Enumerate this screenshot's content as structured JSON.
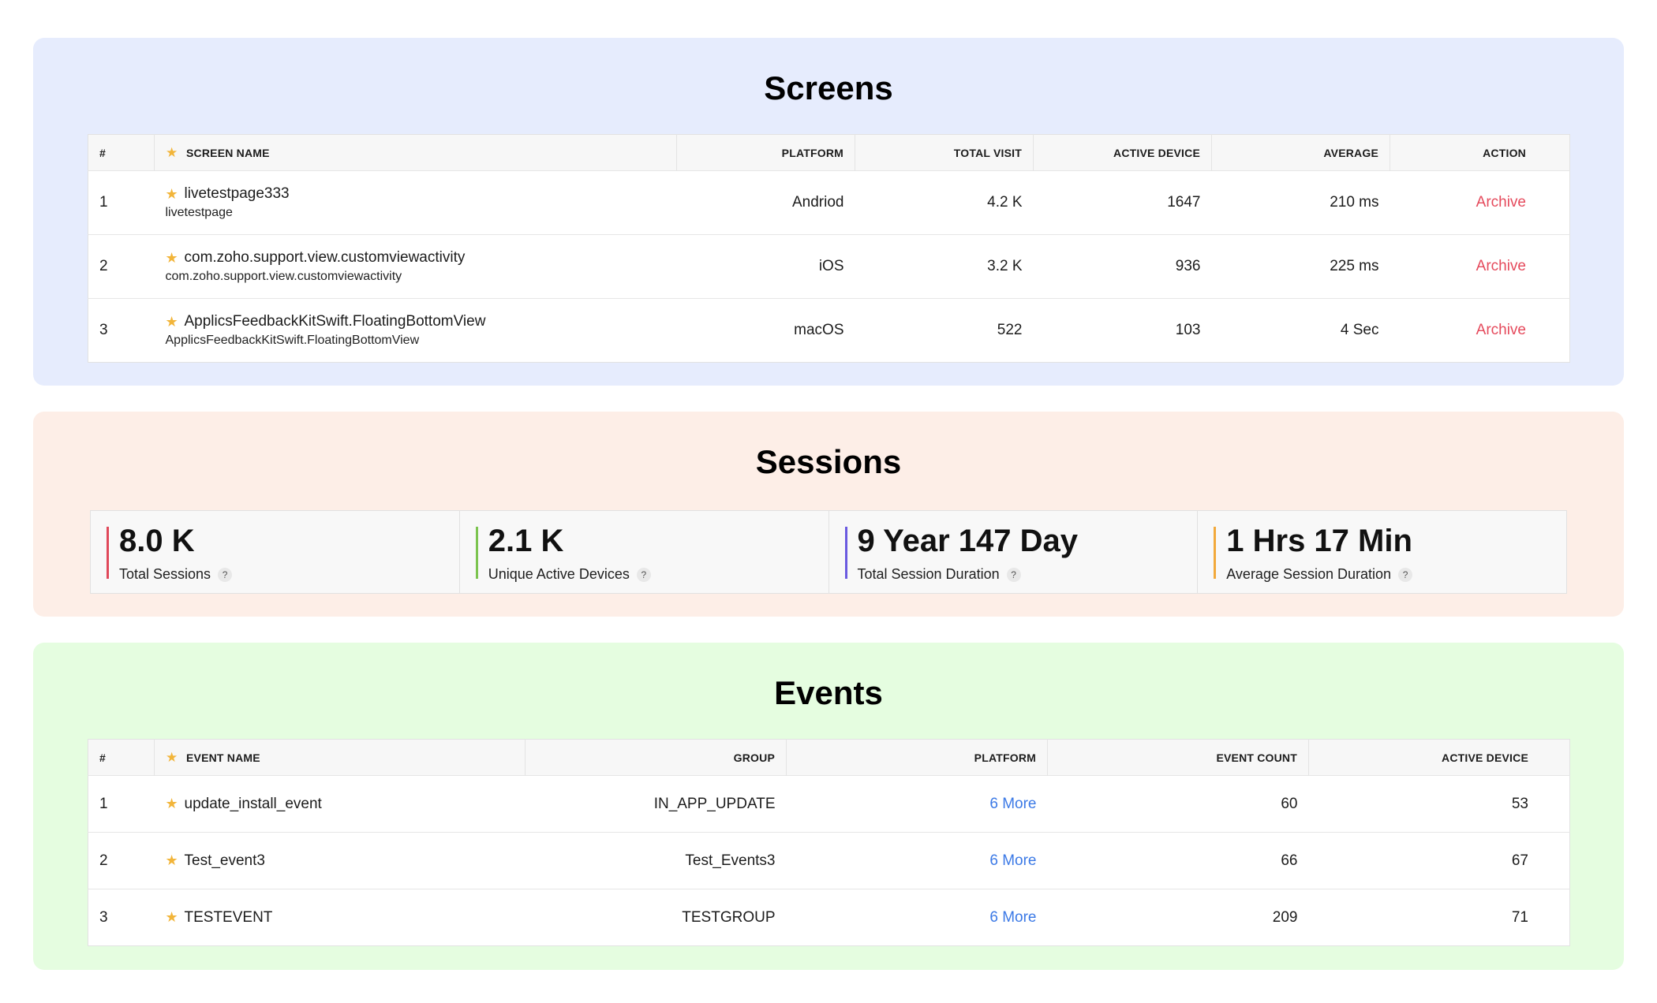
{
  "screens": {
    "title": "Screens",
    "columns": [
      "#",
      "SCREEN NAME",
      "PLATFORM",
      "TOTAL VISIT",
      "ACTIVE DEVICE",
      "AVERAGE",
      "ACTION"
    ],
    "rows": [
      {
        "index": "1",
        "name": "livetestpage333",
        "sub": "livetestpage",
        "platform": "Andriod",
        "total_visit": "4.2 K",
        "active_device": "1647",
        "average": "210 ms",
        "action": "Archive"
      },
      {
        "index": "2",
        "name": "com.zoho.support.view.customviewactivity",
        "sub": "com.zoho.support.view.customviewactivity",
        "platform": "iOS",
        "total_visit": "3.2 K",
        "active_device": "936",
        "average": "225 ms",
        "action": "Archive"
      },
      {
        "index": "3",
        "name": "ApplicsFeedbackKitSwift.FloatingBottomView",
        "sub": "ApplicsFeedbackKitSwift.FloatingBottomView",
        "platform": "macOS",
        "total_visit": "522",
        "active_device": "103",
        "average": "4 Sec",
        "action": "Archive"
      }
    ]
  },
  "sessions": {
    "title": "Sessions",
    "stats": [
      {
        "value": "8.0 K",
        "label": "Total Sessions",
        "color": "#e0485a"
      },
      {
        "value": "2.1 K",
        "label": "Unique Active Devices",
        "color": "#7cc44f"
      },
      {
        "value": "9 Year 147 Day",
        "label": "Total Session Duration",
        "color": "#6a5ae0"
      },
      {
        "value": "1 Hrs 17 Min",
        "label": "Average Session Duration",
        "color": "#f2a93b"
      }
    ],
    "help_glyph": "?"
  },
  "events": {
    "title": "Events",
    "columns": [
      "#",
      "EVENT NAME",
      "GROUP",
      "PLATFORM",
      "EVENT COUNT",
      "ACTIVE DEVICE"
    ],
    "rows": [
      {
        "index": "1",
        "name": "update_install_event",
        "group": "IN_APP_UPDATE",
        "platform": "6 More",
        "event_count": "60",
        "active_device": "53"
      },
      {
        "index": "2",
        "name": "Test_event3",
        "group": "Test_Events3",
        "platform": "6 More",
        "event_count": "66",
        "active_device": "67"
      },
      {
        "index": "3",
        "name": "TESTEVENT",
        "group": "TESTGROUP",
        "platform": "6 More",
        "event_count": "209",
        "active_device": "71"
      }
    ]
  },
  "icons": {
    "star": "star-icon",
    "help": "help-icon"
  },
  "colors": {
    "archive": "#e54a5c",
    "more_link": "#3b79e6",
    "star": "#f2b53a"
  }
}
